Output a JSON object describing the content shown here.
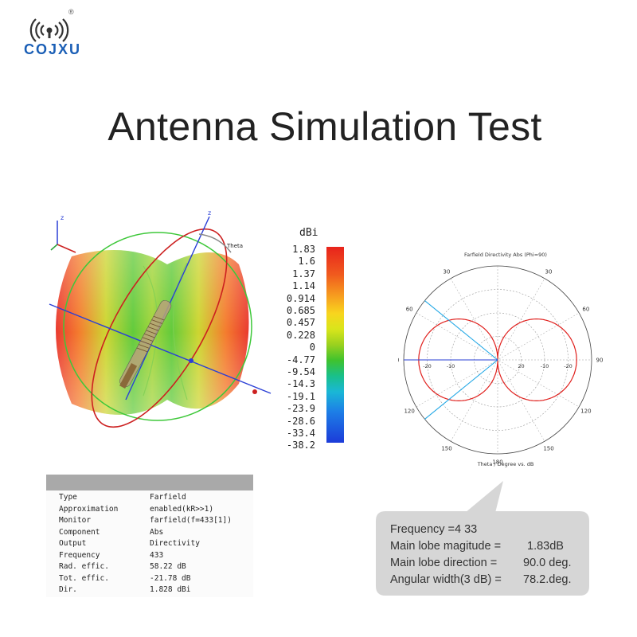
{
  "brand": {
    "name": "COJXU",
    "registered": "®"
  },
  "title": "Antenna Simulation Test",
  "simulation_3d": {
    "axis_labels": {
      "z_small": "z",
      "z_main": "z",
      "theta": "Theta"
    }
  },
  "colorbar": {
    "unit": "dBi",
    "ticks": [
      "1.83",
      "1.6",
      "1.37",
      "1.14",
      "0.914",
      "0.685",
      "0.457",
      "0.228",
      "0",
      "-4.77",
      "-9.54",
      "-14.3",
      "-19.1",
      "-23.9",
      "-28.6",
      "-33.4",
      "-38.2"
    ]
  },
  "polar_plot": {
    "title": "Farfield Directivity Abs (Phi=90)",
    "caption": "Theta / Degree vs. dB",
    "angle_labels": [
      "0",
      "30",
      "60",
      "90",
      "120",
      "150",
      "180",
      "150",
      "120",
      "90",
      "60",
      "30"
    ],
    "radial_labels": [
      "-20",
      "-10",
      "20",
      "-10",
      "-20"
    ]
  },
  "chart_data": {
    "type": "polar",
    "title": "Farfield Directivity Abs (Phi=90)",
    "xlabel": "Theta / Degree vs. dB",
    "pattern": "figure-eight dipole pattern, maxima at 90 deg each side, nulls at 0 and 180 deg",
    "main_lobe_direction_deg": 90.0,
    "main_lobe_magnitude_dBi": 1.83,
    "beamwidth_3dB_deg": 78.2
  },
  "result_table": {
    "rows": [
      {
        "key": "Type",
        "value": "Farfield"
      },
      {
        "key": "Approximation",
        "value": "enabled(kR>>1)"
      },
      {
        "key": "Monitor",
        "value": "farfield(f=433[1])"
      },
      {
        "key": "Component",
        "value": "Abs"
      },
      {
        "key": "Output",
        "value": "Directivity"
      },
      {
        "key": "Frequency",
        "value": "433"
      },
      {
        "key": "Rad. effic.",
        "value": "58.22 dB"
      },
      {
        "key": "Tot. effic.",
        "value": "-21.78 dB"
      },
      {
        "key": "Dir.",
        "value": "1.828 dBi"
      }
    ]
  },
  "summary": {
    "frequency": "Frequency =4 33",
    "main_lobe_magnitude_label": "Main lobe magitude  =",
    "main_lobe_magnitude_value": "1.83dB",
    "main_lobe_direction_label": "Main lobe direction  =",
    "main_lobe_direction_value": "90.0 deg.",
    "angular_width_label": "Angular width(3 dB) =",
    "angular_width_value": "78.2.deg."
  },
  "colors": {
    "brand": "#1b5fb6",
    "pattern": "#e0201d",
    "beam_marker": "#22a8e6",
    "axis": "#2a3fd6",
    "bubble": "#d6d6d6"
  }
}
